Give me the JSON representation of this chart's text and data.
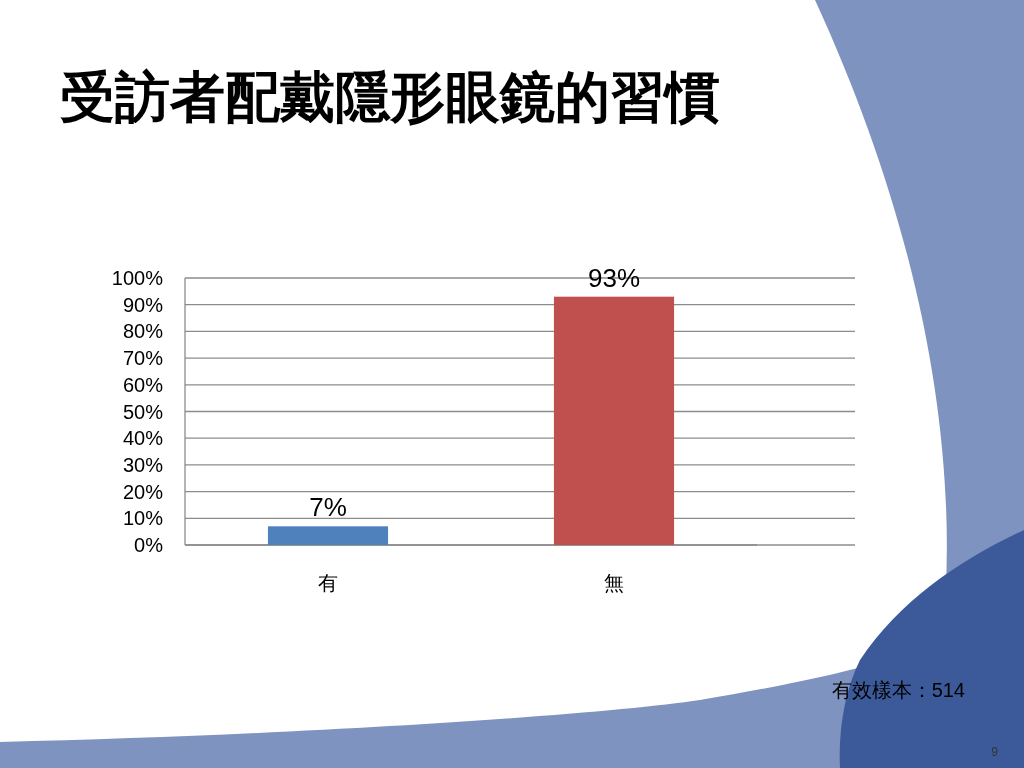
{
  "chart_data": {
    "type": "bar",
    "title": "受訪者配戴隱形眼鏡的習慣",
    "categories": [
      "有",
      "無"
    ],
    "values": [
      7,
      93
    ],
    "colors": [
      "#4f81bd",
      "#c0504d"
    ],
    "ylim": [
      0,
      100
    ],
    "yticks": [
      {
        "value": 0,
        "label": "0%"
      },
      {
        "value": 10,
        "label": "10%"
      },
      {
        "value": 20,
        "label": "20%"
      },
      {
        "value": 30,
        "label": "30%"
      },
      {
        "value": 40,
        "label": "40%"
      },
      {
        "value": 50,
        "label": "50%"
      },
      {
        "value": 60,
        "label": "60%"
      },
      {
        "value": 70,
        "label": "70%"
      },
      {
        "value": 80,
        "label": "80%"
      },
      {
        "value": 90,
        "label": "90%"
      },
      {
        "value": 100,
        "label": "100%"
      }
    ],
    "grid": "y",
    "value_labels": [
      "7%",
      "93%"
    ],
    "annotations": [
      "有效樣本：514",
      "9"
    ]
  }
}
